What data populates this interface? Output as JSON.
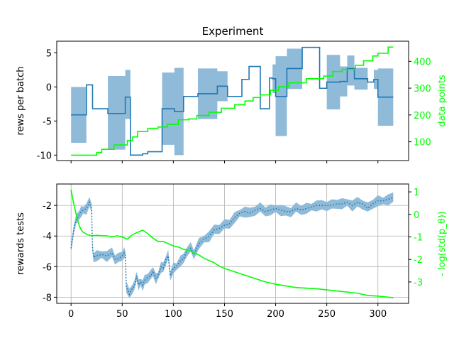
{
  "chart_data": [
    {
      "type": "line",
      "title": "Experiment",
      "ylabel": "rews per batch",
      "ylabel_right": "data points",
      "xlim": [
        -14,
        330
      ],
      "ylim": [
        -10.8,
        6.7
      ],
      "yticks": [
        -10,
        -5,
        0,
        5
      ],
      "ylim_right": [
        30,
        475
      ],
      "yticks_right": [
        100,
        200,
        300,
        400
      ],
      "grid": false,
      "colors": {
        "mean": "#1f77b4",
        "band": "#8fbbd9",
        "data_points": "#00ff00"
      },
      "series": [
        {
          "axis": "left",
          "style": "step",
          "steps": [
            {
              "x0": 0,
              "x1": 15,
              "y": -4.1,
              "lo": -8.2,
              "hi": 0.0
            },
            {
              "x0": 15,
              "x1": 21,
              "y": 0.3,
              "lo": 0.3,
              "hi": 0.3
            },
            {
              "x0": 21,
              "x1": 36,
              "y": -3.2,
              "lo": -3.2,
              "hi": -3.2
            },
            {
              "x0": 36,
              "x1": 53,
              "y": -3.9,
              "lo": -9.2,
              "hi": 1.6
            },
            {
              "x0": 53,
              "x1": 58,
              "y": -1.5,
              "lo": -4.7,
              "hi": 2.5
            },
            {
              "x0": 58,
              "x1": 70,
              "y": -10.0,
              "lo": -10.0,
              "hi": -10.0
            },
            {
              "x0": 70,
              "x1": 75,
              "y": -9.8,
              "lo": -9.8,
              "hi": -9.8
            },
            {
              "x0": 75,
              "x1": 89,
              "y": -9.5,
              "lo": -9.5,
              "hi": -9.5
            },
            {
              "x0": 89,
              "x1": 101,
              "y": -3.2,
              "lo": -8.5,
              "hi": 2.1
            },
            {
              "x0": 101,
              "x1": 110,
              "y": -3.6,
              "lo": -10.0,
              "hi": 2.8
            },
            {
              "x0": 110,
              "x1": 124,
              "y": -1.4,
              "lo": -1.4,
              "hi": -1.4
            },
            {
              "x0": 124,
              "x1": 143,
              "y": -1.0,
              "lo": -4.7,
              "hi": 2.7
            },
            {
              "x0": 143,
              "x1": 153,
              "y": 0.1,
              "lo": -2.1,
              "hi": 2.3
            },
            {
              "x0": 153,
              "x1": 167,
              "y": -1.4,
              "lo": -1.4,
              "hi": -1.4
            },
            {
              "x0": 167,
              "x1": 174,
              "y": 1.1,
              "lo": 1.1,
              "hi": 1.1
            },
            {
              "x0": 174,
              "x1": 185,
              "y": 3.0,
              "lo": 3.0,
              "hi": 3.0
            },
            {
              "x0": 185,
              "x1": 194,
              "y": -3.2,
              "lo": -3.2,
              "hi": -3.2
            },
            {
              "x0": 194,
              "x1": 197,
              "y": 1.3,
              "lo": 1.3,
              "hi": 1.3
            },
            {
              "x0": 197,
              "x1": 200,
              "y": 1.2,
              "lo": -0.9,
              "hi": 3.3
            },
            {
              "x0": 200,
              "x1": 211,
              "y": -1.4,
              "lo": -7.2,
              "hi": 4.5
            },
            {
              "x0": 211,
              "x1": 226,
              "y": 2.7,
              "lo": -0.3,
              "hi": 5.6
            },
            {
              "x0": 226,
              "x1": 243,
              "y": 5.8,
              "lo": 5.8,
              "hi": 5.8
            },
            {
              "x0": 243,
              "x1": 250,
              "y": -0.2,
              "lo": -0.2,
              "hi": -0.2
            },
            {
              "x0": 250,
              "x1": 263,
              "y": 0.7,
              "lo": -3.3,
              "hi": 4.7
            },
            {
              "x0": 263,
              "x1": 270,
              "y": 0.8,
              "lo": -1.4,
              "hi": 3.0
            },
            {
              "x0": 270,
              "x1": 277,
              "y": 2.7,
              "lo": 0.2,
              "hi": 4.6
            },
            {
              "x0": 277,
              "x1": 290,
              "y": 1.2,
              "lo": -0.4,
              "hi": 2.8
            },
            {
              "x0": 290,
              "x1": 296,
              "y": 0.7,
              "lo": 0.7,
              "hi": 0.7
            },
            {
              "x0": 296,
              "x1": 300,
              "y": 1.1,
              "lo": -0.3,
              "hi": 2.5
            },
            {
              "x0": 300,
              "x1": 315,
              "y": -1.5,
              "lo": -5.7,
              "hi": 2.7
            }
          ]
        },
        {
          "axis": "right",
          "style": "step",
          "x": [
            0,
            4,
            10,
            18,
            25,
            30,
            35,
            42,
            50,
            55,
            60,
            65,
            70,
            75,
            85,
            94,
            105,
            115,
            123,
            135,
            147,
            160,
            170,
            178,
            185,
            195,
            203,
            213,
            230,
            247,
            256,
            265,
            278,
            286,
            295,
            300,
            310,
            315
          ],
          "y": [
            50,
            50,
            50,
            50,
            60,
            72,
            72,
            88,
            88,
            105,
            118,
            138,
            138,
            150,
            155,
            165,
            182,
            185,
            198,
            210,
            225,
            238,
            252,
            265,
            275,
            292,
            305,
            320,
            335,
            345,
            362,
            370,
            385,
            402,
            420,
            430,
            453,
            453
          ]
        }
      ]
    },
    {
      "type": "line",
      "ylabel": "rewards tests",
      "ylabel_right": "- log(std(p_θ))",
      "xlim": [
        -14,
        330
      ],
      "xticks": [
        0,
        50,
        100,
        150,
        200,
        250,
        300
      ],
      "ylim": [
        -8.4,
        -0.6
      ],
      "yticks": [
        -8,
        -6,
        -4,
        -2
      ],
      "ylim_right": [
        -3.95,
        1.35
      ],
      "yticks_right": [
        -3,
        -2,
        -1,
        0,
        1
      ],
      "grid": true,
      "series": [
        {
          "axis": "left",
          "style": "dotted",
          "x": [
            0,
            3,
            5,
            8,
            10,
            12,
            15,
            18,
            20,
            21,
            22,
            25,
            30,
            35,
            40,
            43,
            46,
            50,
            52,
            53,
            54,
            57,
            60,
            62,
            64,
            66,
            68,
            70,
            72,
            75,
            78,
            80,
            83,
            85,
            88,
            90,
            93,
            95,
            97,
            100,
            103,
            107,
            110,
            113,
            117,
            120,
            125,
            130,
            135,
            140,
            145,
            150,
            155,
            160,
            165,
            170,
            175,
            180,
            185,
            190,
            195,
            200,
            205,
            210,
            215,
            220,
            225,
            230,
            235,
            240,
            245,
            250,
            255,
            260,
            265,
            270,
            275,
            280,
            285,
            290,
            295,
            300,
            305,
            310,
            315
          ],
          "y": [
            -4.8,
            -3.4,
            -3.0,
            -2.6,
            -2.4,
            -2.3,
            -2.2,
            -1.8,
            -2.1,
            -4.8,
            -5.4,
            -5.3,
            -5.2,
            -5.3,
            -5.1,
            -5.5,
            -5.5,
            -5.3,
            -5.1,
            -5.2,
            -7.3,
            -7.8,
            -7.4,
            -7.3,
            -6.6,
            -7.2,
            -7.0,
            -7.2,
            -6.9,
            -6.7,
            -6.6,
            -6.3,
            -6.8,
            -6.6,
            -6.0,
            -6.1,
            -5.5,
            -5.3,
            -6.6,
            -6.1,
            -6.0,
            -5.6,
            -5.5,
            -5.0,
            -4.8,
            -5.2,
            -4.5,
            -4.2,
            -4.0,
            -3.6,
            -3.5,
            -3.3,
            -3.2,
            -2.8,
            -2.5,
            -2.4,
            -2.5,
            -2.3,
            -2.2,
            -2.4,
            -2.3,
            -2.2,
            -2.3,
            -2.4,
            -2.4,
            -2.2,
            -2.3,
            -2.2,
            -2.1,
            -2.0,
            -2.0,
            -2.0,
            -2.0,
            -1.9,
            -1.9,
            -1.8,
            -2.0,
            -1.8,
            -1.9,
            -2.2,
            -1.9,
            -1.7,
            -1.7,
            -1.6,
            -1.5
          ],
          "band": 0.3
        },
        {
          "axis": "right",
          "style": "line",
          "x": [
            0,
            2,
            4,
            6,
            8,
            10,
            12,
            14,
            16,
            18,
            20,
            25,
            30,
            35,
            40,
            45,
            50,
            55,
            60,
            65,
            70,
            75,
            80,
            85,
            90,
            95,
            100,
            105,
            110,
            115,
            120,
            125,
            130,
            135,
            140,
            145,
            150,
            160,
            170,
            180,
            190,
            200,
            220,
            240,
            260,
            280,
            290,
            300,
            315
          ],
          "y": [
            1.1,
            0.6,
            0.2,
            -0.2,
            -0.5,
            -0.7,
            -0.8,
            -0.85,
            -0.9,
            -0.92,
            -0.95,
            -0.93,
            -0.95,
            -0.95,
            -1.0,
            -0.95,
            -1.0,
            -1.1,
            -0.9,
            -0.8,
            -0.7,
            -0.85,
            -1.05,
            -1.2,
            -1.2,
            -1.3,
            -1.4,
            -1.45,
            -1.55,
            -1.6,
            -1.7,
            -1.8,
            -1.95,
            -2.05,
            -2.15,
            -2.3,
            -2.4,
            -2.55,
            -2.7,
            -2.85,
            -3.0,
            -3.1,
            -3.25,
            -3.3,
            -3.4,
            -3.5,
            -3.6,
            -3.63,
            -3.7
          ]
        }
      ]
    }
  ]
}
